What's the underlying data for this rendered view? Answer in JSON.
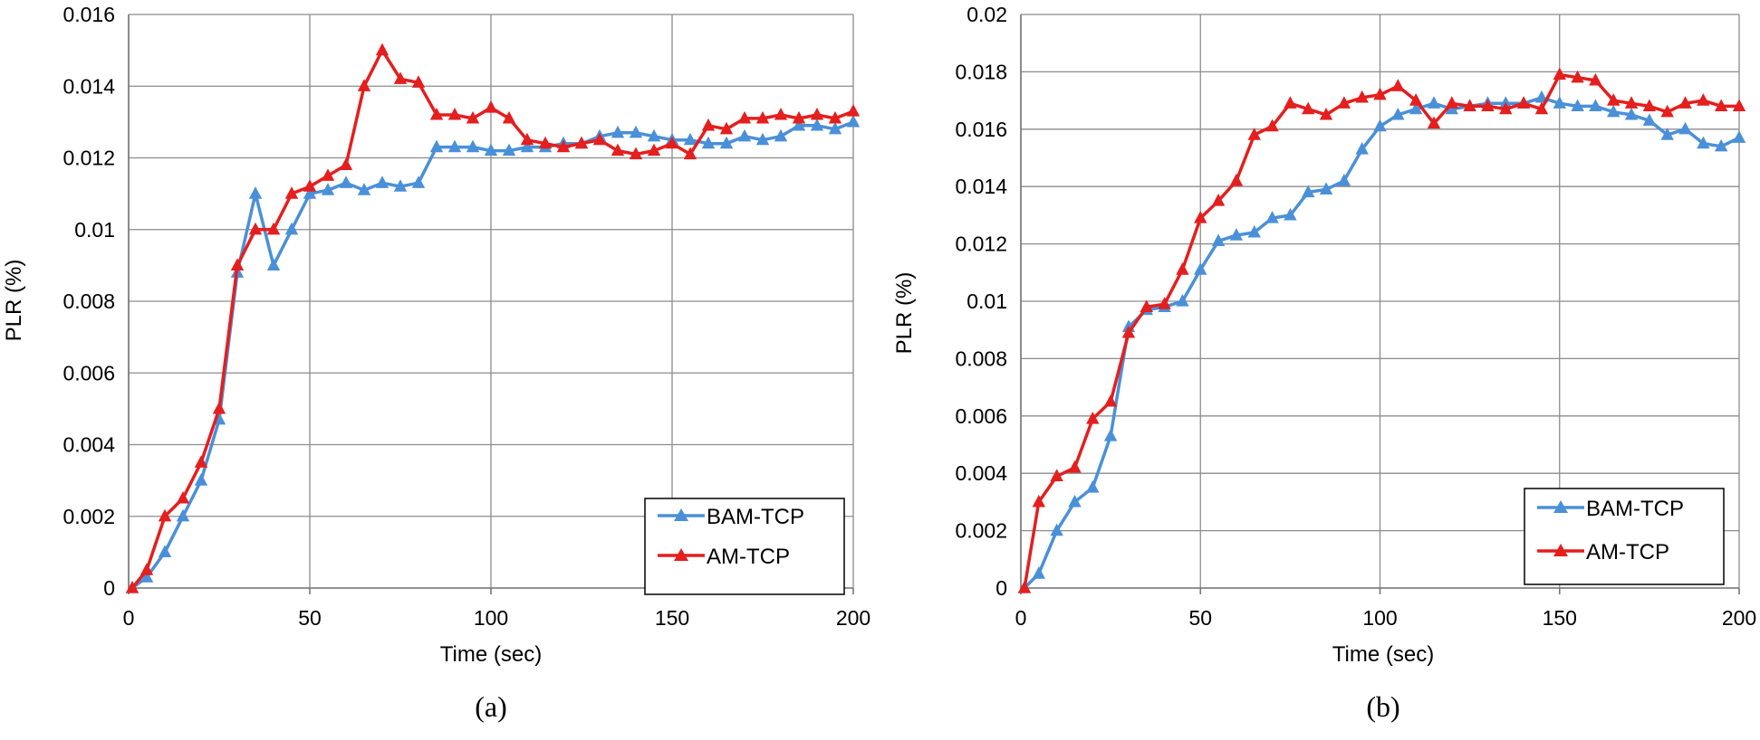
{
  "colors": {
    "bam": "#4a90d9",
    "am": "#e51e1e",
    "grid": "#8c8c8c",
    "axis": "#777777"
  },
  "chart_data": [
    {
      "type": "line",
      "caption": "(a)",
      "xlabel": "Time (sec)",
      "ylabel": "PLR (%)",
      "xlim": [
        0,
        200
      ],
      "ylim": [
        0,
        0.016
      ],
      "x_ticks": [
        0,
        50,
        100,
        150,
        200
      ],
      "x_tick_labels": [
        "0",
        "50",
        "100",
        "150",
        "200"
      ],
      "y_ticks": [
        0,
        0.002,
        0.004,
        0.006,
        0.008,
        0.01,
        0.012,
        0.014,
        0.016
      ],
      "y_tick_labels": [
        "0",
        "0.002",
        "0.004",
        "0.006",
        "0.008",
        "0.01",
        "0.012",
        "0.014",
        "0.016"
      ],
      "grid": true,
      "legend_position": "bottom-right",
      "x": [
        1,
        5,
        10,
        15,
        20,
        25,
        30,
        35,
        40,
        45,
        50,
        55,
        60,
        65,
        70,
        75,
        80,
        85,
        90,
        95,
        100,
        105,
        110,
        115,
        120,
        125,
        130,
        135,
        140,
        145,
        150,
        155,
        160,
        165,
        170,
        175,
        180,
        185,
        190,
        195,
        200
      ],
      "series": [
        {
          "name": "BAM-TCP",
          "color_key": "bam",
          "values": [
            0,
            0.0003,
            0.001,
            0.002,
            0.003,
            0.0047,
            0.0088,
            0.011,
            0.009,
            0.01,
            0.011,
            0.0111,
            0.0113,
            0.0111,
            0.0113,
            0.0112,
            0.0113,
            0.0123,
            0.0123,
            0.0123,
            0.0122,
            0.0122,
            0.0123,
            0.0123,
            0.0124,
            0.0124,
            0.0126,
            0.0127,
            0.0127,
            0.0126,
            0.0125,
            0.0125,
            0.0124,
            0.0124,
            0.0126,
            0.0125,
            0.0126,
            0.0129,
            0.0129,
            0.0128,
            0.013
          ]
        },
        {
          "name": "AM-TCP",
          "color_key": "am",
          "values": [
            0,
            0.0005,
            0.002,
            0.0025,
            0.0035,
            0.005,
            0.009,
            0.01,
            0.01,
            0.011,
            0.0112,
            0.0115,
            0.0118,
            0.014,
            0.015,
            0.0142,
            0.0141,
            0.0132,
            0.0132,
            0.0131,
            0.0134,
            0.0131,
            0.0125,
            0.0124,
            0.0123,
            0.0124,
            0.0125,
            0.0122,
            0.0121,
            0.0122,
            0.0124,
            0.0121,
            0.0129,
            0.0128,
            0.0131,
            0.0131,
            0.0132,
            0.0131,
            0.0132,
            0.0131,
            0.0133
          ]
        }
      ]
    },
    {
      "type": "line",
      "caption": "(b)",
      "xlabel": "Time (sec)",
      "ylabel": "PLR (%)",
      "xlim": [
        0,
        200
      ],
      "ylim": [
        0,
        0.02
      ],
      "x_ticks": [
        0,
        50,
        100,
        150,
        200
      ],
      "x_tick_labels": [
        "0",
        "50",
        "100",
        "150",
        "200"
      ],
      "y_ticks": [
        0,
        0.002,
        0.004,
        0.006,
        0.008,
        0.01,
        0.012,
        0.014,
        0.016,
        0.018,
        0.02
      ],
      "y_tick_labels": [
        "0",
        "0.002",
        "0.004",
        "0.006",
        "0.008",
        "0.01",
        "0.012",
        "0.014",
        "0.016",
        "0.018",
        "0.02"
      ],
      "grid": true,
      "legend_position": "bottom-right",
      "x": [
        1,
        5,
        10,
        15,
        20,
        25,
        30,
        35,
        40,
        45,
        50,
        55,
        60,
        65,
        70,
        75,
        80,
        85,
        90,
        95,
        100,
        105,
        110,
        115,
        120,
        125,
        130,
        135,
        140,
        145,
        150,
        155,
        160,
        165,
        170,
        175,
        180,
        185,
        190,
        195,
        200
      ],
      "series": [
        {
          "name": "BAM-TCP",
          "color_key": "bam",
          "values": [
            0,
            0.0005,
            0.002,
            0.003,
            0.0035,
            0.0053,
            0.0091,
            0.0097,
            0.0098,
            0.01,
            0.0111,
            0.0121,
            0.0123,
            0.0124,
            0.0129,
            0.013,
            0.0138,
            0.0139,
            0.0142,
            0.0153,
            0.0161,
            0.0165,
            0.0167,
            0.0169,
            0.0167,
            0.0168,
            0.0169,
            0.0169,
            0.0169,
            0.0171,
            0.0169,
            0.0168,
            0.0168,
            0.0166,
            0.0165,
            0.0163,
            0.0158,
            0.016,
            0.0155,
            0.0154,
            0.0157
          ]
        },
        {
          "name": "AM-TCP",
          "color_key": "am",
          "values": [
            0,
            0.003,
            0.0039,
            0.0042,
            0.0059,
            0.0065,
            0.0089,
            0.0098,
            0.0099,
            0.0111,
            0.0129,
            0.0135,
            0.0142,
            0.0158,
            0.0161,
            0.0169,
            0.0167,
            0.0165,
            0.0169,
            0.0171,
            0.0172,
            0.0175,
            0.017,
            0.0162,
            0.0169,
            0.0168,
            0.0168,
            0.0167,
            0.0169,
            0.0167,
            0.0179,
            0.0178,
            0.0177,
            0.017,
            0.0169,
            0.0168,
            0.0166,
            0.0169,
            0.017,
            0.0168,
            0.0168
          ]
        }
      ]
    }
  ]
}
